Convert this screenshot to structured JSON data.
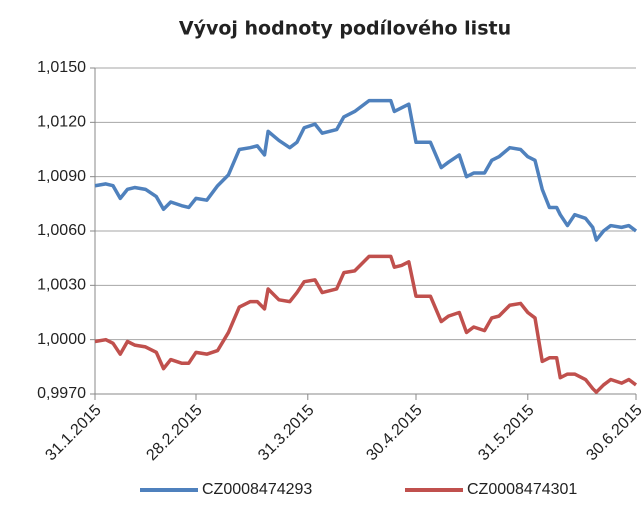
{
  "chart_data": {
    "type": "line",
    "title": "Vývoj hodnoty podílového listu",
    "x": [
      "2015-01-31",
      "2015-02-03",
      "2015-02-05",
      "2015-02-07",
      "2015-02-09",
      "2015-02-11",
      "2015-02-14",
      "2015-02-17",
      "2015-02-19",
      "2015-02-21",
      "2015-02-24",
      "2015-02-26",
      "2015-02-28",
      "2015-03-03",
      "2015-03-06",
      "2015-03-09",
      "2015-03-12",
      "2015-03-15",
      "2015-03-17",
      "2015-03-19",
      "2015-03-20",
      "2015-03-23",
      "2015-03-26",
      "2015-03-28",
      "2015-03-30",
      "2015-04-02",
      "2015-04-04",
      "2015-04-08",
      "2015-04-10",
      "2015-04-13",
      "2015-04-17",
      "2015-04-20",
      "2015-04-23",
      "2015-04-24",
      "2015-04-26",
      "2015-04-28",
      "2015-04-30",
      "2015-05-02",
      "2015-05-04",
      "2015-05-07",
      "2015-05-09",
      "2015-05-12",
      "2015-05-14",
      "2015-05-16",
      "2015-05-19",
      "2015-05-21",
      "2015-05-23",
      "2015-05-26",
      "2015-05-29",
      "2015-05-31",
      "2015-06-02",
      "2015-06-04",
      "2015-06-06",
      "2015-06-08",
      "2015-06-09",
      "2015-06-11",
      "2015-06-13",
      "2015-06-16",
      "2015-06-18",
      "2015-06-19",
      "2015-06-21",
      "2015-06-23",
      "2015-06-26",
      "2015-06-28",
      "2015-06-30"
    ],
    "series": [
      {
        "name": "CZ0008474293",
        "color": "#4f81bd",
        "values": [
          1.0085,
          1.0086,
          1.0085,
          1.0078,
          1.0083,
          1.0084,
          1.0083,
          1.0079,
          1.0072,
          1.0076,
          1.0074,
          1.0073,
          1.0078,
          1.0077,
          1.0085,
          1.0091,
          1.0105,
          1.0106,
          1.0107,
          1.0102,
          1.0115,
          1.011,
          1.0106,
          1.0109,
          1.0117,
          1.0119,
          1.0114,
          1.0116,
          1.0123,
          1.0126,
          1.0132,
          1.0132,
          1.0132,
          1.0126,
          1.0128,
          1.013,
          1.0109,
          1.0109,
          1.0109,
          1.0095,
          1.0098,
          1.0102,
          1.009,
          1.0092,
          1.0092,
          1.0099,
          1.0101,
          1.0106,
          1.0105,
          1.0101,
          1.0099,
          1.0083,
          1.0073,
          1.0073,
          1.0069,
          1.0063,
          1.0069,
          1.0067,
          1.0062,
          1.0055,
          1.006,
          1.0063,
          1.0062,
          1.0063,
          1.006
        ]
      },
      {
        "name": "CZ0008474301",
        "color": "#c0504d",
        "values": [
          0.9999,
          1.0,
          0.9998,
          0.9992,
          0.9999,
          0.9997,
          0.9996,
          0.9993,
          0.9984,
          0.9989,
          0.9987,
          0.9987,
          0.9993,
          0.9992,
          0.9994,
          1.0004,
          1.0018,
          1.0021,
          1.0021,
          1.0017,
          1.0028,
          1.0022,
          1.0021,
          1.0026,
          1.0032,
          1.0033,
          1.0026,
          1.0028,
          1.0037,
          1.0038,
          1.0046,
          1.0046,
          1.0046,
          1.004,
          1.0041,
          1.0043,
          1.0024,
          1.0024,
          1.0024,
          1.001,
          1.0013,
          1.0015,
          1.0004,
          1.0007,
          1.0005,
          1.0012,
          1.0013,
          1.0019,
          1.002,
          1.0015,
          1.0012,
          0.9988,
          0.999,
          0.999,
          0.9979,
          0.9981,
          0.9981,
          0.9978,
          0.9973,
          0.9971,
          0.9975,
          0.9978,
          0.9976,
          0.9978,
          0.9975
        ]
      }
    ],
    "xlim": [
      "2015-01-31",
      "2015-06-30"
    ],
    "xticks": [
      {
        "value": "2015-01-31",
        "label": "31.1.2015"
      },
      {
        "value": "2015-02-28",
        "label": "28.2.2015"
      },
      {
        "value": "2015-03-31",
        "label": "31.3.2015"
      },
      {
        "value": "2015-04-30",
        "label": "30.4.2015"
      },
      {
        "value": "2015-05-31",
        "label": "31.5.2015"
      },
      {
        "value": "2015-06-30",
        "label": "30.6.2015"
      }
    ],
    "ylim": [
      0.997,
      1.015
    ],
    "yticks": [
      {
        "value": 0.997,
        "label": "0,9970"
      },
      {
        "value": 1.0,
        "label": "1,0000"
      },
      {
        "value": 1.003,
        "label": "1,0030"
      },
      {
        "value": 1.006,
        "label": "1,0060"
      },
      {
        "value": 1.009,
        "label": "1,0090"
      },
      {
        "value": 1.012,
        "label": "1,0120"
      },
      {
        "value": 1.015,
        "label": "1,0150"
      }
    ],
    "grid": true,
    "legend": "bottom"
  }
}
